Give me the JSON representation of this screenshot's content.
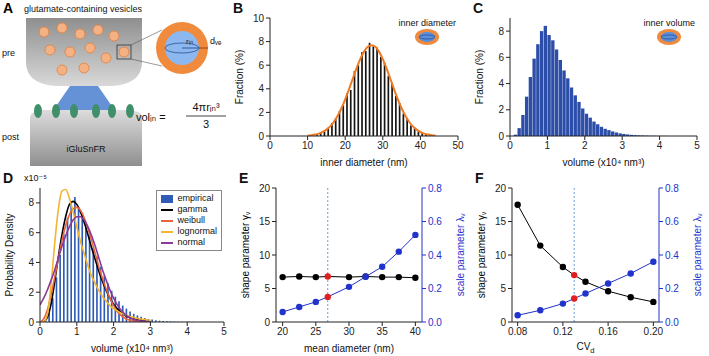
{
  "diagram": {
    "letter": "A",
    "vesicles_label": "glutamate-containing vesicles",
    "pre_label": "pre",
    "post_label": "post",
    "sensor_label": "iGluSnFR",
    "formula": {
      "lhs": "volᵢₙ =",
      "numerator": "4πrᵢₙ³",
      "denominator": "3"
    },
    "radius_label": "rᵢₙ",
    "wall_label": "dᵥₑ"
  },
  "chart_data": [
    {
      "letter": "B",
      "type": "histogram",
      "x_label": "inner diameter (nm)",
      "y_label": "Fraction (%)",
      "inset": "inner diameter",
      "color": "#151515",
      "bins": [
        12,
        13,
        14,
        15,
        16,
        17,
        18,
        19,
        20,
        21,
        22,
        23,
        24,
        25,
        26,
        27,
        28,
        29,
        30,
        31,
        32,
        33,
        34,
        35,
        36,
        37,
        38,
        39,
        40,
        41,
        42,
        43
      ],
      "counts": [
        0.1,
        0.3,
        0.4,
        0.7,
        1.1,
        1.5,
        2.1,
        2.6,
        3.6,
        3.9,
        5.5,
        6.0,
        7.1,
        7.2,
        7.9,
        7.6,
        7.5,
        6.7,
        6.2,
        5.1,
        4.5,
        3.4,
        2.8,
        1.9,
        1.5,
        0.9,
        0.7,
        0.4,
        0.3,
        0.1,
        0.1
      ],
      "fit": {
        "color": "#f07a22",
        "x": [
          10,
          11,
          12,
          13,
          14,
          15,
          16,
          17,
          18,
          19,
          20,
          21,
          22,
          23,
          24,
          25,
          26,
          27,
          28,
          29,
          30,
          31,
          32,
          33,
          34,
          35,
          36,
          37,
          38,
          39,
          40,
          41,
          42,
          43,
          44
        ],
        "values": [
          0.04,
          0.07,
          0.12,
          0.2,
          0.34,
          0.54,
          0.82,
          1.21,
          1.72,
          2.35,
          3.11,
          3.95,
          4.85,
          5.73,
          6.52,
          7.15,
          7.56,
          7.7,
          7.56,
          7.15,
          6.52,
          5.73,
          4.85,
          3.95,
          3.11,
          2.35,
          1.72,
          1.21,
          0.82,
          0.54,
          0.34,
          0.2,
          0.12,
          0.07,
          0.04
        ]
      },
      "xlim": [
        0,
        50
      ],
      "xticks": [
        0,
        10,
        20,
        30,
        40,
        50
      ],
      "ylim": [
        0,
        10
      ],
      "yticks": [
        0,
        2,
        4,
        6,
        8,
        10
      ]
    },
    {
      "letter": "C",
      "type": "histogram",
      "x_label": "volume (x10⁴ nm³)",
      "y_label": "Fraction (%)",
      "inset": "inner volume",
      "color": "#2c4ea8",
      "bins": [
        0,
        0.1,
        0.2,
        0.3,
        0.4,
        0.5,
        0.6,
        0.7,
        0.8,
        0.9,
        1,
        1.1,
        1.2,
        1.3,
        1.4,
        1.5,
        1.6,
        1.7,
        1.8,
        1.9,
        2,
        2.1,
        2.2,
        2.3,
        2.4,
        2.5,
        2.6,
        2.7,
        2.8,
        2.9,
        3,
        3.1,
        3.2,
        3.3,
        3.4,
        3.5,
        3.6,
        3.7,
        3.8,
        3.9,
        4,
        4.1,
        4.2,
        4.3,
        4.4,
        4.5
      ],
      "counts": [
        0,
        0.1,
        0.6,
        1.6,
        3.0,
        4.5,
        5.9,
        7.0,
        8.0,
        8.4,
        7.7,
        7.3,
        6.6,
        5.8,
        5.0,
        4.4,
        3.7,
        3.1,
        2.6,
        2.1,
        1.7,
        1.4,
        1.1,
        0.9,
        0.7,
        0.55,
        0.45,
        0.35,
        0.27,
        0.2,
        0.16,
        0.12,
        0.09,
        0.07,
        0.05,
        0.04,
        0.03,
        0.02,
        0.02,
        0.01,
        0.01,
        0.01,
        0,
        0,
        0
      ],
      "xlim": [
        0,
        5
      ],
      "xticks": [
        0,
        1,
        2,
        3,
        4,
        5
      ],
      "ylim": [
        0,
        9
      ],
      "yticks": [
        0,
        2,
        4,
        6,
        8
      ]
    },
    {
      "letter": "D",
      "type": "histogram",
      "x_label": "volume (x10⁴ nm³)",
      "y_label": "Probability Density",
      "y_multiplier": "x10⁻⁵",
      "name": "empirical",
      "color": "#2e5bb5",
      "legend": "upper right",
      "bins": [
        0,
        0.1,
        0.2,
        0.3,
        0.4,
        0.5,
        0.6,
        0.7,
        0.8,
        0.9,
        1,
        1.1,
        1.2,
        1.3,
        1.4,
        1.5,
        1.6,
        1.7,
        1.8,
        1.9,
        2,
        2.1,
        2.2,
        2.3,
        2.4,
        2.5,
        2.6,
        2.7,
        2.8,
        2.9,
        3,
        3.1,
        3.2,
        3.3,
        3.4,
        3.5,
        3.6,
        3.7,
        3.8,
        3.9,
        4,
        4.1,
        4.2,
        4.3,
        4.4,
        4.5
      ],
      "counts": [
        0,
        0.1,
        0.6,
        1.6,
        3.0,
        4.5,
        5.9,
        7.0,
        8.0,
        8.4,
        7.7,
        7.3,
        6.6,
        5.8,
        5.0,
        4.4,
        3.7,
        3.1,
        2.6,
        2.1,
        1.7,
        1.4,
        1.1,
        0.9,
        0.7,
        0.55,
        0.45,
        0.35,
        0.27,
        0.2,
        0.16,
        0.12,
        0.09,
        0.07,
        0.05,
        0.04,
        0.03,
        0.02,
        0.02,
        0.01,
        0.01,
        0.01,
        0,
        0,
        0
      ],
      "x": [
        0,
        0.1,
        0.2,
        0.3,
        0.4,
        0.5,
        0.6,
        0.7,
        0.8,
        0.9,
        1,
        1.1,
        1.2,
        1.3,
        1.4,
        1.5,
        1.6,
        1.7,
        1.8,
        1.9,
        2,
        2.1,
        2.2,
        2.3,
        2.4,
        2.5,
        2.6,
        2.7,
        2.8,
        2.9,
        3
      ],
      "series": [
        {
          "name": "gamma",
          "type": "line",
          "color": "#000000",
          "values": [
            0,
            0.02,
            0.3,
            1.2,
            2.7,
            4.4,
            5.9,
            7.1,
            7.9,
            8.1,
            7.9,
            7.4,
            6.7,
            5.9,
            5.0,
            4.2,
            3.4,
            2.7,
            2.1,
            1.6,
            1.2,
            0.9,
            0.65,
            0.47,
            0.33,
            0.23,
            0.16,
            0.11,
            0.07,
            0.05,
            0.03
          ]
        },
        {
          "name": "weibull",
          "type": "line",
          "color": "#e8643c",
          "values": [
            0,
            0.2,
            0.8,
            1.8,
            3.0,
            4.3,
            5.5,
            6.5,
            7.2,
            7.6,
            7.7,
            7.5,
            7.0,
            6.3,
            5.5,
            4.6,
            3.7,
            2.9,
            2.2,
            1.6,
            1.1,
            0.7,
            0.45,
            0.27,
            0.15,
            0.08,
            0.04,
            0.02,
            0.01,
            0,
            0
          ]
        },
        {
          "name": "lognormal",
          "type": "line",
          "color": "#f2b531",
          "values": [
            0,
            0.01,
            0.5,
            2.5,
            5.3,
            7.6,
            8.8,
            8.9,
            8.3,
            7.4,
            6.4,
            5.4,
            4.6,
            3.8,
            3.1,
            2.6,
            2.1,
            1.7,
            1.4,
            1.1,
            0.9,
            0.75,
            0.6,
            0.5,
            0.4,
            0.33,
            0.27,
            0.22,
            0.18,
            0.15,
            0.12
          ]
        },
        {
          "name": "normal",
          "type": "line",
          "color": "#8b3a9a",
          "values": [
            1.15,
            1.6,
            2.15,
            2.8,
            3.5,
            4.3,
            5.1,
            5.8,
            6.4,
            6.85,
            7.07,
            7.07,
            6.85,
            6.4,
            5.8,
            5.1,
            4.3,
            3.5,
            2.8,
            2.15,
            1.6,
            1.15,
            0.8,
            0.54,
            0.35,
            0.22,
            0.13,
            0.08,
            0.05,
            0.02,
            0.01
          ]
        }
      ],
      "xlim": [
        0,
        5
      ],
      "xticks": [
        0,
        1,
        2,
        3,
        4,
        5
      ],
      "ylim": [
        0,
        9
      ],
      "yticks": [
        0,
        2,
        4,
        6,
        8
      ]
    },
    {
      "letter": "E",
      "type": "line",
      "x_label": "mean diameter (nm)",
      "y_label": "shape parameter γᵥ",
      "y2_label": "scale parameter λᵥ",
      "x": [
        20,
        22.5,
        25,
        26.8,
        30,
        32.5,
        35,
        37.5,
        40
      ],
      "series": [
        {
          "color": "#000000",
          "marker": "circle",
          "colors": [
            "#000000",
            "#000000",
            "#000000",
            "#e02020",
            "#000000",
            "#000000",
            "#000000",
            "#000000",
            "#000000"
          ],
          "values": [
            6.7,
            6.8,
            6.7,
            6.8,
            6.7,
            6.8,
            6.7,
            6.7,
            6.6
          ]
        },
        {
          "color": "#2233cc",
          "marker": "circle",
          "axis": "y2",
          "colors": [
            "#2233cc",
            "#2233cc",
            "#2233cc",
            "#e02020",
            "#2233cc",
            "#2233cc",
            "#2233cc",
            "#2233cc",
            "#2233cc"
          ],
          "values": [
            0.06,
            0.09,
            0.12,
            0.15,
            0.21,
            0.27,
            0.33,
            0.42,
            0.52
          ]
        }
      ],
      "vline": {
        "x": 26.8,
        "color": "#6a9fd8",
        "line_style": "dotted"
      },
      "xlim": [
        19,
        41
      ],
      "xticks": [
        20,
        25,
        30,
        35,
        40
      ],
      "ylim": [
        0,
        20
      ],
      "yticks": [
        0,
        5,
        10,
        15,
        20
      ],
      "y2lim": [
        0,
        0.8
      ],
      "y2ticks": [
        {
          "value": 0,
          "label": "0.0"
        },
        0.2,
        0.4,
        0.6,
        0.8
      ]
    },
    {
      "letter": "F",
      "type": "line",
      "x_label": {
        "text": "CV",
        "subscript": "d"
      },
      "y_label": "shape parameter γᵥ",
      "y2_label": "scale parameter λᵥ",
      "x": [
        0.08,
        0.1,
        0.12,
        0.13,
        0.14,
        0.16,
        0.18,
        0.2
      ],
      "series": [
        {
          "color": "#000000",
          "marker": "circle",
          "colors": [
            "#000000",
            "#000000",
            "#000000",
            "#e02020",
            "#000000",
            "#000000",
            "#000000",
            "#000000"
          ],
          "values": [
            17.5,
            11.4,
            8.2,
            7.0,
            6.0,
            4.6,
            3.7,
            3.0
          ]
        },
        {
          "color": "#2233cc",
          "marker": "circle",
          "axis": "y2",
          "colors": [
            "#2233cc",
            "#2233cc",
            "#2233cc",
            "#e02020",
            "#2233cc",
            "#2233cc",
            "#2233cc",
            "#2233cc"
          ],
          "values": [
            0.04,
            0.07,
            0.11,
            0.14,
            0.17,
            0.23,
            0.29,
            0.36
          ]
        }
      ],
      "vline": {
        "x": 0.13,
        "color": "#6a9fd8",
        "line_style": "dotted"
      },
      "xlim": [
        0.075,
        0.205
      ],
      "xticks": [
        0.08,
        0.12,
        0.16,
        {
          "value": 0.2,
          "label": "0.20"
        }
      ],
      "ylim": [
        0,
        20
      ],
      "yticks": [
        0,
        5,
        10,
        15,
        20
      ],
      "y2lim": [
        0,
        0.8
      ],
      "y2ticks": [
        {
          "value": 0,
          "label": "0.0"
        },
        0.2,
        0.4,
        0.6,
        0.8
      ]
    }
  ]
}
